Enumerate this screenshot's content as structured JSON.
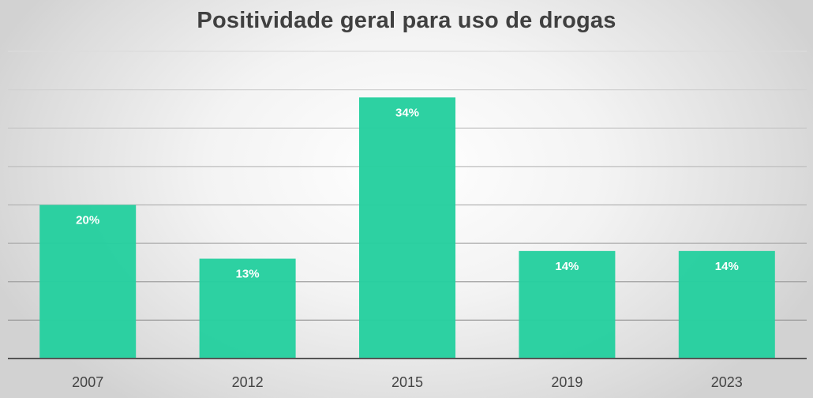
{
  "chart_data": {
    "type": "bar",
    "title": "Positividade geral para uso de drogas",
    "categories": [
      "2007",
      "2012",
      "2015",
      "2019",
      "2023"
    ],
    "values": [
      20,
      13,
      34,
      14,
      14
    ],
    "data_labels": [
      "20%",
      "13%",
      "34%",
      "14%",
      "14%"
    ],
    "xlabel": "",
    "ylabel": "",
    "ylim": [
      0,
      40
    ],
    "ytick_step": 5,
    "y_axis_labels_visible": false,
    "grid": true,
    "legend": "none",
    "bar_color": "#26cf9f",
    "value_unit": "%"
  }
}
